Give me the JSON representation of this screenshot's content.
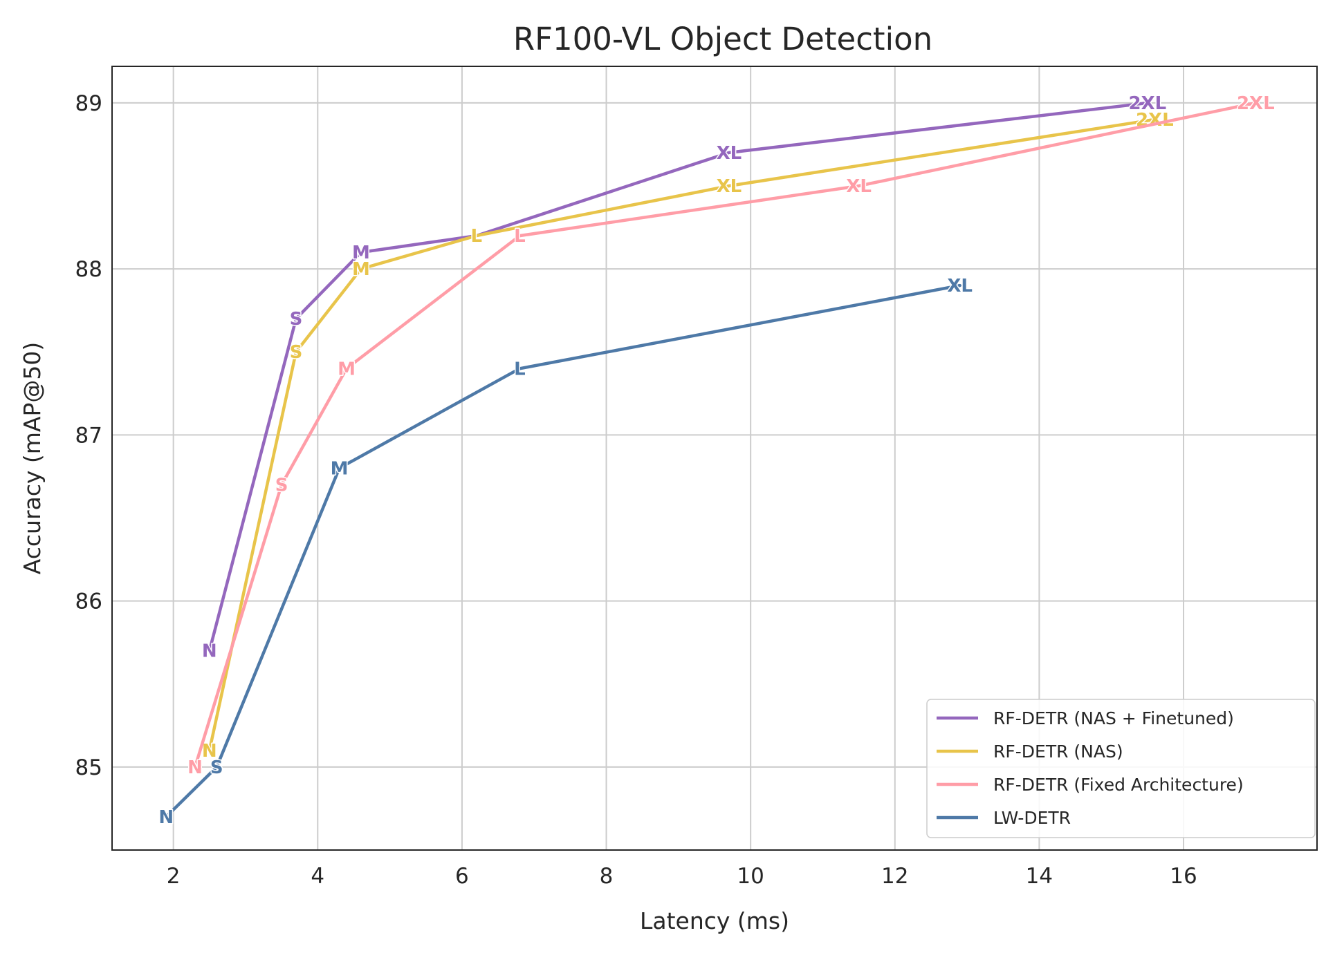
{
  "chart_data": {
    "type": "line",
    "title": "RF100-VL Object Detection",
    "xlabel": "Latency (ms)",
    "ylabel": "Accuracy (mAP@50)",
    "xlim": [
      1.15,
      17.85
    ],
    "ylim": [
      84.5,
      89.22
    ],
    "xticks": [
      2,
      4,
      6,
      8,
      10,
      12,
      14,
      16
    ],
    "yticks": [
      85,
      86,
      87,
      88,
      89
    ],
    "grid": true,
    "legend_position": "bottom-right",
    "series": [
      {
        "name": "RF-DETR (NAS + Finetuned)",
        "color": "#9467bd",
        "points": [
          {
            "label": "N",
            "x": 2.5,
            "y": 85.7
          },
          {
            "label": "S",
            "x": 3.7,
            "y": 87.7
          },
          {
            "label": "M",
            "x": 4.6,
            "y": 88.1
          },
          {
            "label": "L",
            "x": 6.2,
            "y": 88.2
          },
          {
            "label": "XL",
            "x": 9.7,
            "y": 88.7
          },
          {
            "label": "2XL",
            "x": 15.5,
            "y": 89.0
          }
        ]
      },
      {
        "name": "RF-DETR (NAS)",
        "color": "#e8c44a",
        "points": [
          {
            "label": "N",
            "x": 2.5,
            "y": 85.1
          },
          {
            "label": "S",
            "x": 3.7,
            "y": 87.5
          },
          {
            "label": "M",
            "x": 4.6,
            "y": 88.0
          },
          {
            "label": "L",
            "x": 6.2,
            "y": 88.2
          },
          {
            "label": "XL",
            "x": 9.7,
            "y": 88.5
          },
          {
            "label": "2XL",
            "x": 15.6,
            "y": 88.9
          }
        ]
      },
      {
        "name": "RF-DETR (Fixed Architecture)",
        "color": "#ff9da7",
        "points": [
          {
            "label": "N",
            "x": 2.3,
            "y": 85.0
          },
          {
            "label": "S",
            "x": 3.5,
            "y": 86.7
          },
          {
            "label": "M",
            "x": 4.4,
            "y": 87.4
          },
          {
            "label": "L",
            "x": 6.8,
            "y": 88.2
          },
          {
            "label": "XL",
            "x": 11.5,
            "y": 88.5
          },
          {
            "label": "2XL",
            "x": 17.0,
            "y": 89.0
          }
        ]
      },
      {
        "name": "LW-DETR",
        "color": "#4e79a7",
        "points": [
          {
            "label": "N",
            "x": 1.9,
            "y": 84.7
          },
          {
            "label": "S",
            "x": 2.6,
            "y": 85.0
          },
          {
            "label": "M",
            "x": 4.3,
            "y": 86.8
          },
          {
            "label": "L",
            "x": 6.8,
            "y": 87.4
          },
          {
            "label": "XL",
            "x": 12.9,
            "y": 87.9
          }
        ]
      }
    ]
  }
}
